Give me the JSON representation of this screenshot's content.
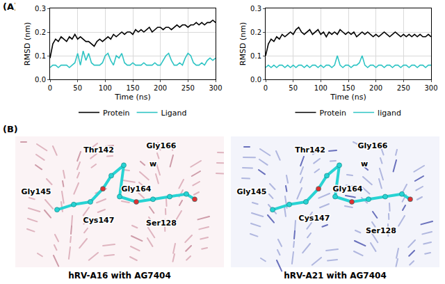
{
  "panel_labels": [
    "(A)",
    "(B)"
  ],
  "chart_data": [
    {
      "type": "line",
      "x_label": "Time (ns)",
      "y_label": "RMSD (nm)",
      "x": [
        0,
        5,
        10,
        15,
        20,
        25,
        30,
        35,
        40,
        45,
        50,
        55,
        60,
        65,
        70,
        75,
        80,
        85,
        90,
        95,
        100,
        105,
        110,
        115,
        120,
        125,
        130,
        135,
        140,
        145,
        150,
        155,
        160,
        165,
        170,
        175,
        180,
        185,
        190,
        195,
        200,
        205,
        210,
        215,
        220,
        225,
        230,
        235,
        240,
        245,
        250,
        255,
        260,
        265,
        270,
        275,
        280,
        285,
        290,
        295,
        300
      ],
      "series": [
        {
          "name": "Protein",
          "color": "#000000",
          "values": [
            0.09,
            0.15,
            0.17,
            0.16,
            0.18,
            0.17,
            0.16,
            0.18,
            0.17,
            0.19,
            0.17,
            0.18,
            0.17,
            0.16,
            0.16,
            0.15,
            0.14,
            0.16,
            0.17,
            0.16,
            0.17,
            0.18,
            0.17,
            0.19,
            0.18,
            0.19,
            0.2,
            0.19,
            0.2,
            0.2,
            0.19,
            0.21,
            0.2,
            0.21,
            0.2,
            0.21,
            0.22,
            0.2,
            0.21,
            0.22,
            0.22,
            0.21,
            0.22,
            0.22,
            0.21,
            0.22,
            0.23,
            0.22,
            0.23,
            0.23,
            0.22,
            0.23,
            0.23,
            0.24,
            0.23,
            0.24,
            0.23,
            0.24,
            0.24,
            0.25,
            0.24
          ]
        },
        {
          "name": "Ligand",
          "color": "#2ec4c4",
          "values": [
            0.05,
            0.06,
            0.06,
            0.05,
            0.06,
            0.06,
            0.06,
            0.05,
            0.06,
            0.07,
            0.11,
            0.06,
            0.12,
            0.08,
            0.11,
            0.07,
            0.06,
            0.06,
            0.06,
            0.07,
            0.1,
            0.11,
            0.08,
            0.06,
            0.1,
            0.09,
            0.11,
            0.07,
            0.06,
            0.06,
            0.07,
            0.06,
            0.06,
            0.06,
            0.07,
            0.06,
            0.06,
            0.06,
            0.07,
            0.06,
            0.06,
            0.08,
            0.1,
            0.11,
            0.08,
            0.06,
            0.06,
            0.07,
            0.06,
            0.09,
            0.11,
            0.1,
            0.07,
            0.06,
            0.06,
            0.07,
            0.06,
            0.08,
            0.09,
            0.08,
            0.09
          ]
        }
      ],
      "xlim": [
        0,
        300
      ],
      "xticks": [
        0,
        50,
        100,
        150,
        200,
        250,
        300
      ],
      "ylim": [
        0,
        0.3
      ],
      "yticks": [
        {
          "value": 0,
          "label": "0.0"
        },
        0.1,
        0.2,
        0.3
      ],
      "grid": true,
      "legend": "bottom"
    },
    {
      "type": "line",
      "x_label": "Time (ns)",
      "y_label": "RMSD (nm)",
      "x": [
        0,
        5,
        10,
        15,
        20,
        25,
        30,
        35,
        40,
        45,
        50,
        55,
        60,
        65,
        70,
        75,
        80,
        85,
        90,
        95,
        100,
        105,
        110,
        115,
        120,
        125,
        130,
        135,
        140,
        145,
        150,
        155,
        160,
        165,
        170,
        175,
        180,
        185,
        190,
        195,
        200,
        205,
        210,
        215,
        220,
        225,
        230,
        235,
        240,
        245,
        250,
        255,
        260,
        265,
        270,
        275,
        280,
        285,
        290,
        295,
        300
      ],
      "series": [
        {
          "name": "Protein",
          "color": "#000000",
          "values": [
            0.1,
            0.15,
            0.17,
            0.16,
            0.18,
            0.17,
            0.19,
            0.18,
            0.19,
            0.2,
            0.19,
            0.21,
            0.22,
            0.2,
            0.19,
            0.2,
            0.21,
            0.19,
            0.2,
            0.21,
            0.19,
            0.2,
            0.18,
            0.2,
            0.19,
            0.2,
            0.19,
            0.21,
            0.2,
            0.19,
            0.2,
            0.19,
            0.2,
            0.18,
            0.19,
            0.2,
            0.19,
            0.2,
            0.19,
            0.18,
            0.19,
            0.18,
            0.19,
            0.2,
            0.19,
            0.18,
            0.19,
            0.2,
            0.19,
            0.18,
            0.19,
            0.18,
            0.19,
            0.18,
            0.19,
            0.18,
            0.19,
            0.18,
            0.18,
            0.19,
            0.18
          ]
        },
        {
          "name": "ligand",
          "color": "#2ec4c4",
          "values": [
            0.05,
            0.06,
            0.05,
            0.06,
            0.05,
            0.06,
            0.06,
            0.05,
            0.06,
            0.05,
            0.06,
            0.05,
            0.06,
            0.06,
            0.05,
            0.06,
            0.05,
            0.06,
            0.06,
            0.05,
            0.06,
            0.05,
            0.06,
            0.06,
            0.05,
            0.06,
            0.1,
            0.06,
            0.05,
            0.06,
            0.06,
            0.05,
            0.06,
            0.06,
            0.07,
            0.1,
            0.06,
            0.05,
            0.06,
            0.06,
            0.05,
            0.06,
            0.06,
            0.05,
            0.06,
            0.06,
            0.05,
            0.06,
            0.06,
            0.05,
            0.06,
            0.06,
            0.05,
            0.06,
            0.06,
            0.05,
            0.06,
            0.06,
            0.05,
            0.06,
            0.06
          ]
        }
      ],
      "xlim": [
        0,
        300
      ],
      "xticks": [
        0,
        50,
        100,
        150,
        200,
        250,
        300
      ],
      "ylim": [
        0,
        0.3
      ],
      "yticks": [
        {
          "value": 0,
          "label": "0.0"
        },
        0.1,
        0.2,
        0.3
      ],
      "grid": true,
      "legend": "bottom"
    }
  ],
  "structures": [
    {
      "caption": "hRV-A16 with AG7404",
      "residues": [
        "Thr142",
        "Gly166",
        "w",
        "Gly145",
        "Gly164",
        "Cys147",
        "Ser128"
      ]
    },
    {
      "caption": "hRV-A21 with AG7404",
      "residues": [
        "Thr142",
        "Gly166",
        "w",
        "Gly145",
        "Gly164",
        "Cys147",
        "Ser128"
      ]
    }
  ]
}
